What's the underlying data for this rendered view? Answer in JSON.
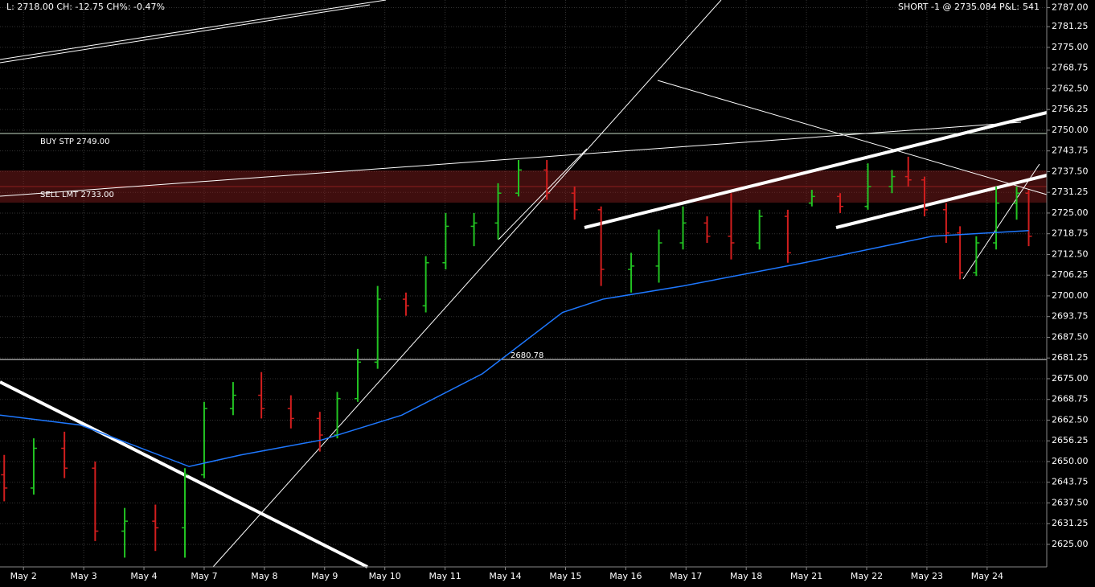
{
  "chart_data": {
    "type": "ohlc",
    "header": "L: 2718.00 CH: -12.75 CH%: -0.47%",
    "position": "SHORT -1 @ 2735.084 P&L:",
    "pnl": 541,
    "ylim": [
      2618.2,
      2789.3
    ],
    "yticks": [
      {
        "value": 2787,
        "label": "2787.00"
      },
      {
        "value": 2781.25,
        "label": "2781.25"
      },
      {
        "value": 2775,
        "label": "2775.00"
      },
      {
        "value": 2768.75,
        "label": "2768.75"
      },
      {
        "value": 2762.5,
        "label": "2762.50"
      },
      {
        "value": 2756.25,
        "label": "2756.25"
      },
      {
        "value": 2750,
        "label": "2750.00"
      },
      {
        "value": 2743.75,
        "label": "2743.75"
      },
      {
        "value": 2737.5,
        "label": "2737.50"
      },
      {
        "value": 2731.25,
        "label": "2731.25"
      },
      {
        "value": 2725,
        "label": "2725.00"
      },
      {
        "value": 2718.75,
        "label": "2718.75"
      },
      {
        "value": 2712.5,
        "label": "2712.50"
      },
      {
        "value": 2706.25,
        "label": "2706.25"
      },
      {
        "value": 2700,
        "label": "2700.00"
      },
      {
        "value": 2693.75,
        "label": "2693.75"
      },
      {
        "value": 2687.5,
        "label": "2687.50"
      },
      {
        "value": 2681.25,
        "label": "2681.25"
      },
      {
        "value": 2675,
        "label": "2675.00"
      },
      {
        "value": 2668.75,
        "label": "2668.75"
      },
      {
        "value": 2662.5,
        "label": "2662.50"
      },
      {
        "value": 2656.25,
        "label": "2656.25"
      },
      {
        "value": 2650,
        "label": "2650.00"
      },
      {
        "value": 2643.75,
        "label": "2643.75"
      },
      {
        "value": 2637.5,
        "label": "2637.50"
      },
      {
        "value": 2631.25,
        "label": "2631.25"
      },
      {
        "value": 2625,
        "label": "2625.00"
      }
    ],
    "xlim": [
      -0.39,
      16.99
    ],
    "xticks": [
      {
        "value": 0,
        "label": "May 2"
      },
      {
        "value": 1,
        "label": "May 3"
      },
      {
        "value": 2,
        "label": "May 4"
      },
      {
        "value": 3,
        "label": "May 7"
      },
      {
        "value": 4,
        "label": "May 8"
      },
      {
        "value": 5,
        "label": "May 9"
      },
      {
        "value": 6,
        "label": "May 10"
      },
      {
        "value": 7,
        "label": "May 11"
      },
      {
        "value": 8,
        "label": "May 14"
      },
      {
        "value": 9,
        "label": "May 15"
      },
      {
        "value": 10,
        "label": "May 16"
      },
      {
        "value": 11,
        "label": "May 17"
      },
      {
        "value": 12,
        "label": "May 18"
      },
      {
        "value": 13,
        "label": "May 21"
      },
      {
        "value": 14,
        "label": "May 22"
      },
      {
        "value": 15,
        "label": "May 23"
      },
      {
        "value": 16,
        "label": "May 24"
      }
    ],
    "up_color": "#22c322",
    "down_color": "#d21e1e",
    "pnl_color": "#33dd33",
    "bars": {
      "x": [
        -0.32,
        0.17,
        0.68,
        1.19,
        1.68,
        2.19,
        2.68,
        3.0,
        3.48,
        3.95,
        4.44,
        4.92,
        5.21,
        5.55,
        5.88,
        6.35,
        6.68,
        7.01,
        7.48,
        7.88,
        8.22,
        8.69,
        9.15,
        9.59,
        10.09,
        10.55,
        10.95,
        11.35,
        11.75,
        12.22,
        12.69,
        13.09,
        13.56,
        14.02,
        14.42,
        14.69,
        14.96,
        15.32,
        15.55,
        15.82,
        16.15,
        16.49,
        16.69
      ],
      "open": [
        2646,
        2642,
        2654,
        2648,
        2629,
        2632,
        2630,
        2646,
        2666,
        2670,
        2666,
        2663,
        2658,
        2669,
        2680,
        2699,
        2697,
        2710,
        2721,
        2722,
        2731,
        2738,
        2731,
        2726,
        2708,
        2709,
        2716,
        2722,
        2718,
        2716,
        2724,
        2728,
        2730,
        2727,
        2733,
        2736,
        2735,
        2726,
        2719,
        2707,
        2716,
        2728,
        2731
      ],
      "high": [
        2652,
        2657,
        2659,
        2650,
        2636,
        2637,
        2648,
        2668,
        2674,
        2677,
        2670,
        2665,
        2671,
        2684,
        2703,
        2701,
        2712,
        2725,
        2725,
        2734,
        2741,
        2741,
        2733,
        2727,
        2713,
        2720,
        2727,
        2724,
        2731,
        2726,
        2726,
        2732,
        2731,
        2740,
        2738,
        2742,
        2736,
        2728,
        2721,
        2718,
        2733,
        2733,
        2732
      ],
      "low": [
        2638,
        2640,
        2645,
        2626,
        2621,
        2623,
        2621,
        2645,
        2664,
        2663,
        2660,
        2653,
        2657,
        2668,
        2678,
        2694,
        2695,
        2708,
        2715,
        2717,
        2730,
        2729,
        2723,
        2703,
        2701,
        2704,
        2714,
        2716,
        2711,
        2714,
        2710,
        2727,
        2725,
        2726,
        2731,
        2733,
        2724,
        2716,
        2705,
        2706,
        2714,
        2723,
        2715
      ],
      "close": [
        2642,
        2654,
        2648,
        2629,
        2632,
        2630,
        2646,
        2666,
        2670,
        2666,
        2663,
        2658,
        2669,
        2680,
        2699,
        2697,
        2710,
        2721,
        2722,
        2731,
        2738,
        2731,
        2726,
        2708,
        2709,
        2716,
        2722,
        2718,
        2716,
        2724,
        2713,
        2730,
        2727,
        2733,
        2736,
        2735,
        2726,
        2719,
        2707,
        2716,
        2728,
        2731,
        2718
      ]
    },
    "moving_average": {
      "color": "#1e78ff",
      "x": [
        -0.39,
        0.95,
        2.75,
        3.61,
        4.95,
        6.28,
        7.62,
        8.95,
        9.62,
        10.95,
        12.96,
        14.29,
        15.09,
        16.69
      ],
      "values": [
        2664,
        2661,
        2648.5,
        2652,
        2656.5,
        2664,
        2676.5,
        2695,
        2699,
        2703,
        2710,
        2715,
        2718,
        2719.7
      ]
    },
    "levels": [
      {
        "label": "BUY STP 2749.00",
        "value": 2749,
        "color": "#c8dcc8"
      },
      {
        "label": "SELL LMT 2733.00",
        "value": 2733,
        "color": "#8c1e1e"
      },
      {
        "label": "2680.78",
        "value": 2680.78,
        "color": "#e6e6e6"
      }
    ]
  }
}
